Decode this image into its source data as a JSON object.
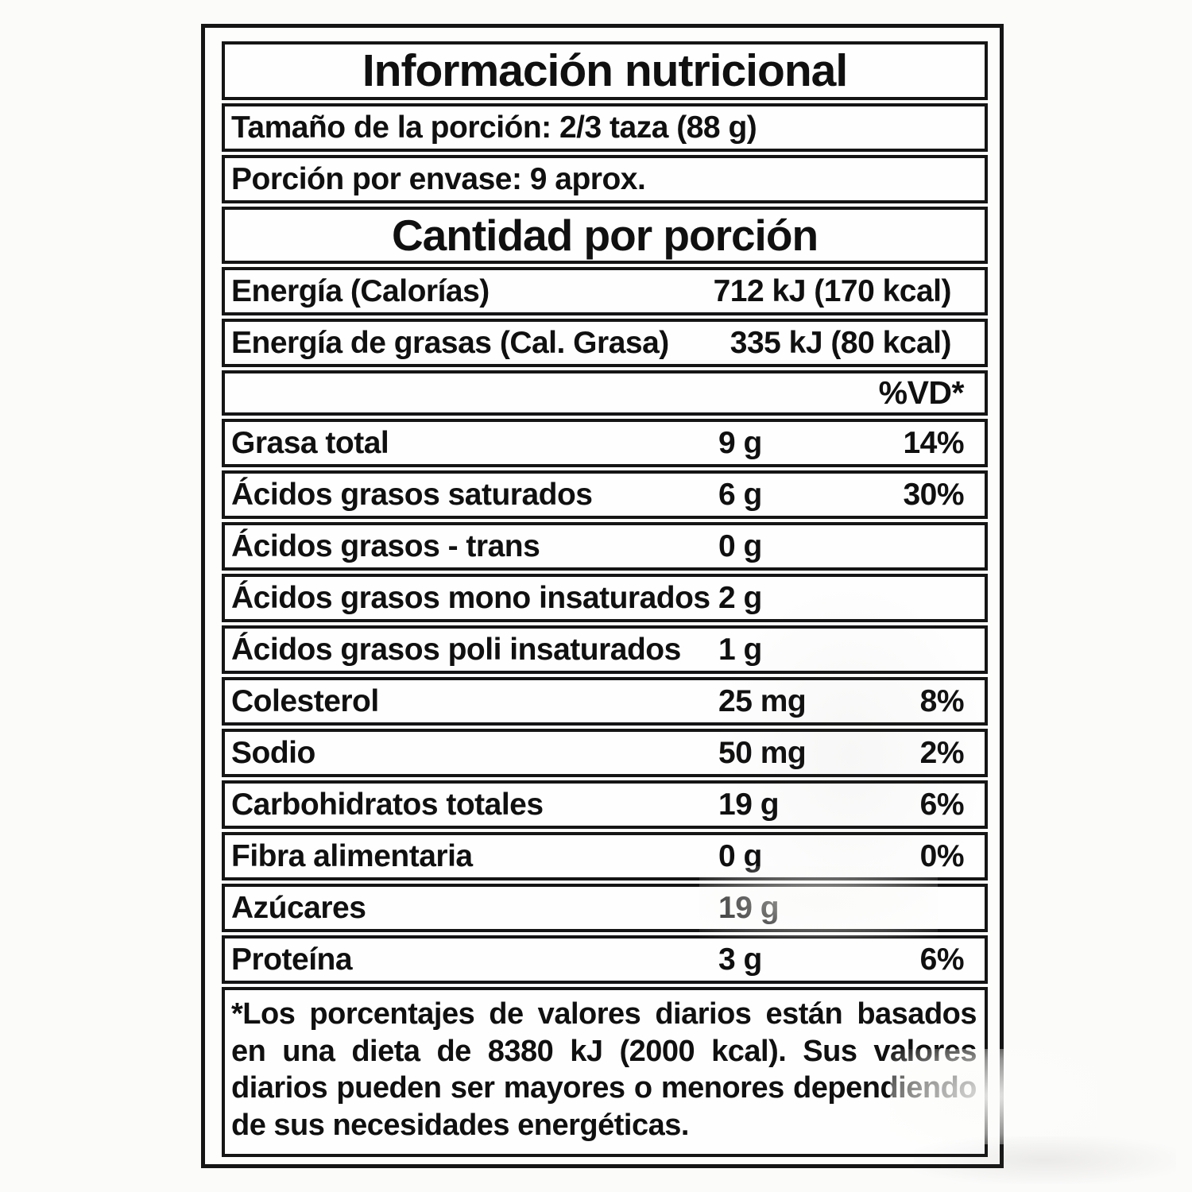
{
  "label": {
    "title": "Información nutricional",
    "serving_size": "Tamaño de la porción: 2/3 taza (88 g)",
    "servings_per_container": "Porción por envase: 9 aprox.",
    "amount_header": "Cantidad por porción",
    "dv_header": "%VD*",
    "energy_rows": [
      {
        "name": "Energía (Calorías)",
        "amount": "712 kJ (170 kcal)"
      },
      {
        "name": "Energía de grasas (Cal. Grasa)",
        "amount": "335 kJ (80 kcal)"
      }
    ],
    "nutrient_rows": [
      {
        "name": "Grasa total",
        "amount": "9 g",
        "dv": "14%"
      },
      {
        "name": "Ácidos grasos saturados",
        "amount": "6 g",
        "dv": "30%"
      },
      {
        "name": "Ácidos grasos - trans",
        "amount": "0 g",
        "dv": ""
      },
      {
        "name": "Ácidos grasos mono insaturados",
        "amount": "2 g",
        "dv": ""
      },
      {
        "name": "Ácidos grasos poli insaturados",
        "amount": "1 g",
        "dv": ""
      },
      {
        "name": "Colesterol",
        "amount": "25 mg",
        "dv": "8%"
      },
      {
        "name": "Sodio",
        "amount": "50 mg",
        "dv": "2%"
      },
      {
        "name": "Carbohidratos totales",
        "amount": "19 g",
        "dv": "6%"
      },
      {
        "name": "Fibra alimentaria",
        "amount": "0 g",
        "dv": "0%"
      },
      {
        "name": "Azúcares",
        "amount": "19 g",
        "dv": ""
      },
      {
        "name": "Proteína",
        "amount": "3 g",
        "dv": "6%"
      }
    ],
    "footnote": "*Los porcentajes de valores diarios están basados en una dieta de 8380 kJ (2000 kcal). Sus valores diarios pueden ser mayores o menores dependiendo de sus necesidades energéticas.",
    "colors": {
      "ink": "#101010",
      "paper": "#fbfbfa"
    }
  }
}
